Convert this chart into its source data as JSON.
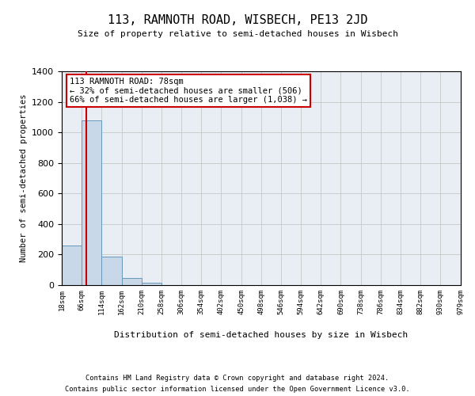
{
  "title": "113, RAMNOTH ROAD, WISBECH, PE13 2JD",
  "subtitle": "Size of property relative to semi-detached houses in Wisbech",
  "xlabel": "Distribution of semi-detached houses by size in Wisbech",
  "ylabel": "Number of semi-detached properties",
  "footer1": "Contains HM Land Registry data © Crown copyright and database right 2024.",
  "footer2": "Contains public sector information licensed under the Open Government Licence v3.0.",
  "annotation_title": "113 RAMNOTH ROAD: 78sqm",
  "annotation_line1": "← 32% of semi-detached houses are smaller (506)",
  "annotation_line2": "66% of semi-detached houses are larger (1,038) →",
  "property_size": 78,
  "bin_edges": [
    18,
    66,
    114,
    162,
    210,
    258,
    306,
    354,
    402,
    450,
    498,
    546,
    594,
    642,
    690,
    738,
    786,
    834,
    882,
    930,
    979
  ],
  "bin_labels": [
    "18sqm",
    "66sqm",
    "114sqm",
    "162sqm",
    "210sqm",
    "258sqm",
    "306sqm",
    "354sqm",
    "402sqm",
    "450sqm",
    "498sqm",
    "546sqm",
    "594sqm",
    "642sqm",
    "690sqm",
    "738sqm",
    "786sqm",
    "834sqm",
    "882sqm",
    "930sqm",
    "979sqm"
  ],
  "bar_heights": [
    260,
    1080,
    185,
    45,
    15,
    0,
    0,
    0,
    0,
    0,
    0,
    0,
    0,
    0,
    0,
    0,
    0,
    0,
    0,
    0
  ],
  "bar_color": "#c8d8e8",
  "bar_edge_color": "#6699bb",
  "red_line_color": "#cc0000",
  "grid_color": "#cccccc",
  "background_color": "#e8eef4",
  "annotation_box_color": "#ffffff",
  "annotation_box_edge": "#cc0000",
  "ylim": [
    0,
    1400
  ],
  "yticks": [
    0,
    200,
    400,
    600,
    800,
    1000,
    1200,
    1400
  ]
}
